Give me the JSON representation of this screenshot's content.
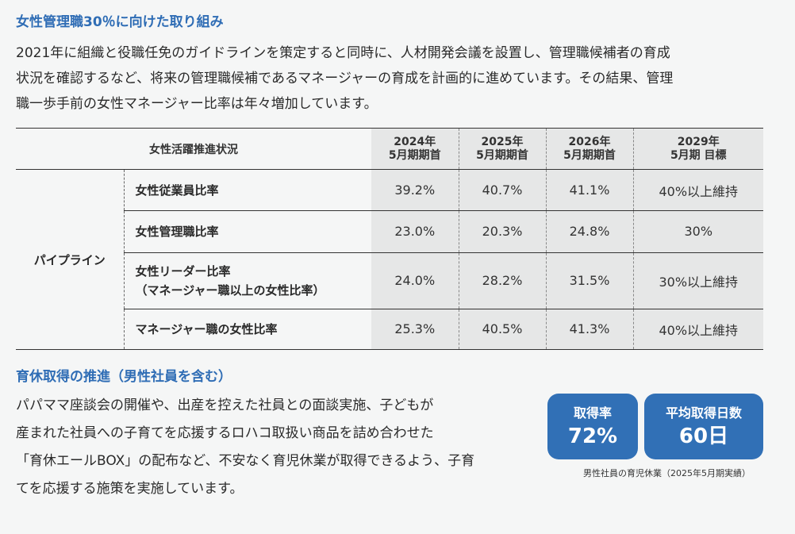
{
  "section1": {
    "title": "女性管理職30％に向けた取り組み",
    "lines": [
      "2021年に組織と役職任免のガイドラインを策定すると同時に、人材開発会議を設置し、管理職候補者の育成",
      "状況を確認するなど、将来の管理職候補であるマネージャーの育成を計画的に進めています。その結果、管理",
      "職一歩手前の女性マネージャー比率は年々増加しています。"
    ]
  },
  "table": {
    "header_label": "女性活躍推進状況",
    "columns": [
      {
        "line1": "2024年",
        "line2": "5月期期首"
      },
      {
        "line1": "2025年",
        "line2": "5月期期首"
      },
      {
        "line1": "2026年",
        "line2": "5月期期首"
      },
      {
        "line1": "2029年",
        "line2": "5月期 目標"
      }
    ],
    "group_label": "パイプライン",
    "rows": [
      {
        "metric": "女性従業員比率",
        "values": [
          "39.2%",
          "40.7%",
          "41.1%",
          "40%以上維持"
        ]
      },
      {
        "metric": "女性管理職比率",
        "values": [
          "23.0%",
          "20.3%",
          "24.8%",
          "30%"
        ]
      },
      {
        "metric": "女性リーダー比率",
        "metric_sub": "（マネージャー職以上の女性比率）",
        "values": [
          "24.0%",
          "28.2%",
          "31.5%",
          "30%以上維持"
        ]
      },
      {
        "metric": "マネージャー職の女性比率",
        "values": [
          "25.3%",
          "40.5%",
          "41.3%",
          "40%以上維持"
        ]
      }
    ]
  },
  "section2": {
    "title": "育休取得の推進（男性社員を含む）",
    "lines": [
      "パパママ座談会の開催や、出産を控えた社員との面談実施、子どもが",
      "産まれた社員への子育てを応援するロハコ取扱い商品を詰め合わせた",
      "「育休エールBOX」の配布など、不安なく育児休業が取得できるよう、子育",
      "てを応援する施策を実施しています。"
    ],
    "badges": [
      {
        "label": "取得率",
        "value": "72%"
      },
      {
        "label": "平均取得日数",
        "value": "60日"
      }
    ],
    "note": "男性社員の育児休業（2025年5月期実績）"
  },
  "colors": {
    "accent": "#2f6db5",
    "badge": "#3170b6",
    "cell_bg": "#e6e7e7",
    "page_bg": "#f5f6f6"
  }
}
